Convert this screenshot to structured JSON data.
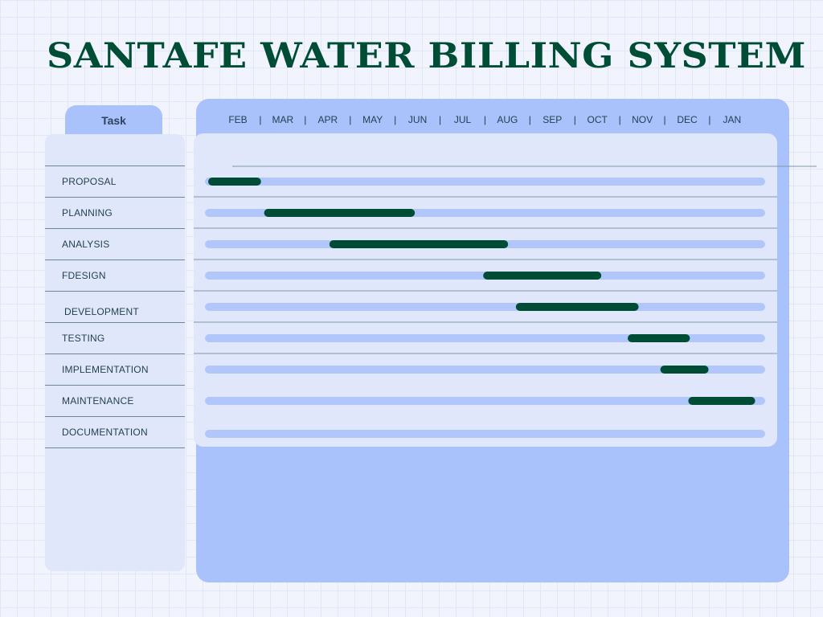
{
  "title": "SANTAFE WATER BILLING SYSTEM",
  "task_header": "Task",
  "separator": "|",
  "colors": {
    "title": "#004d35",
    "bar": "#004d35",
    "track": "#b1c6fb",
    "panel": "#e1e7fb",
    "accent_panel": "#a9c2fc"
  },
  "chart_data": {
    "type": "gantt",
    "months": [
      "FEB",
      "MAR",
      "APR",
      "MAY",
      "JUN",
      "JUL",
      "AUG",
      "SEP",
      "OCT",
      "NOV",
      "DEC",
      "JAN"
    ],
    "tasks": [
      {
        "name": "PROPOSAL",
        "start": 0.0,
        "end": 1.1
      },
      {
        "name": "PLANNING",
        "start": 1.2,
        "end": 4.4
      },
      {
        "name": "ANALYSIS",
        "start": 2.6,
        "end": 6.4
      },
      {
        "name": "FDESIGN",
        "start": 5.9,
        "end": 8.4
      },
      {
        "name": "DEVELOPMENT",
        "start": 6.6,
        "end": 9.2
      },
      {
        "name": "TESTING",
        "start": 9.0,
        "end": 10.3
      },
      {
        "name": "IMPLEMENTATION",
        "start": 9.7,
        "end": 10.7
      },
      {
        "name": "MAINTENANCE",
        "start": 10.3,
        "end": 11.7
      },
      {
        "name": "DOCUMENTATION",
        "start": null,
        "end": null
      }
    ]
  }
}
